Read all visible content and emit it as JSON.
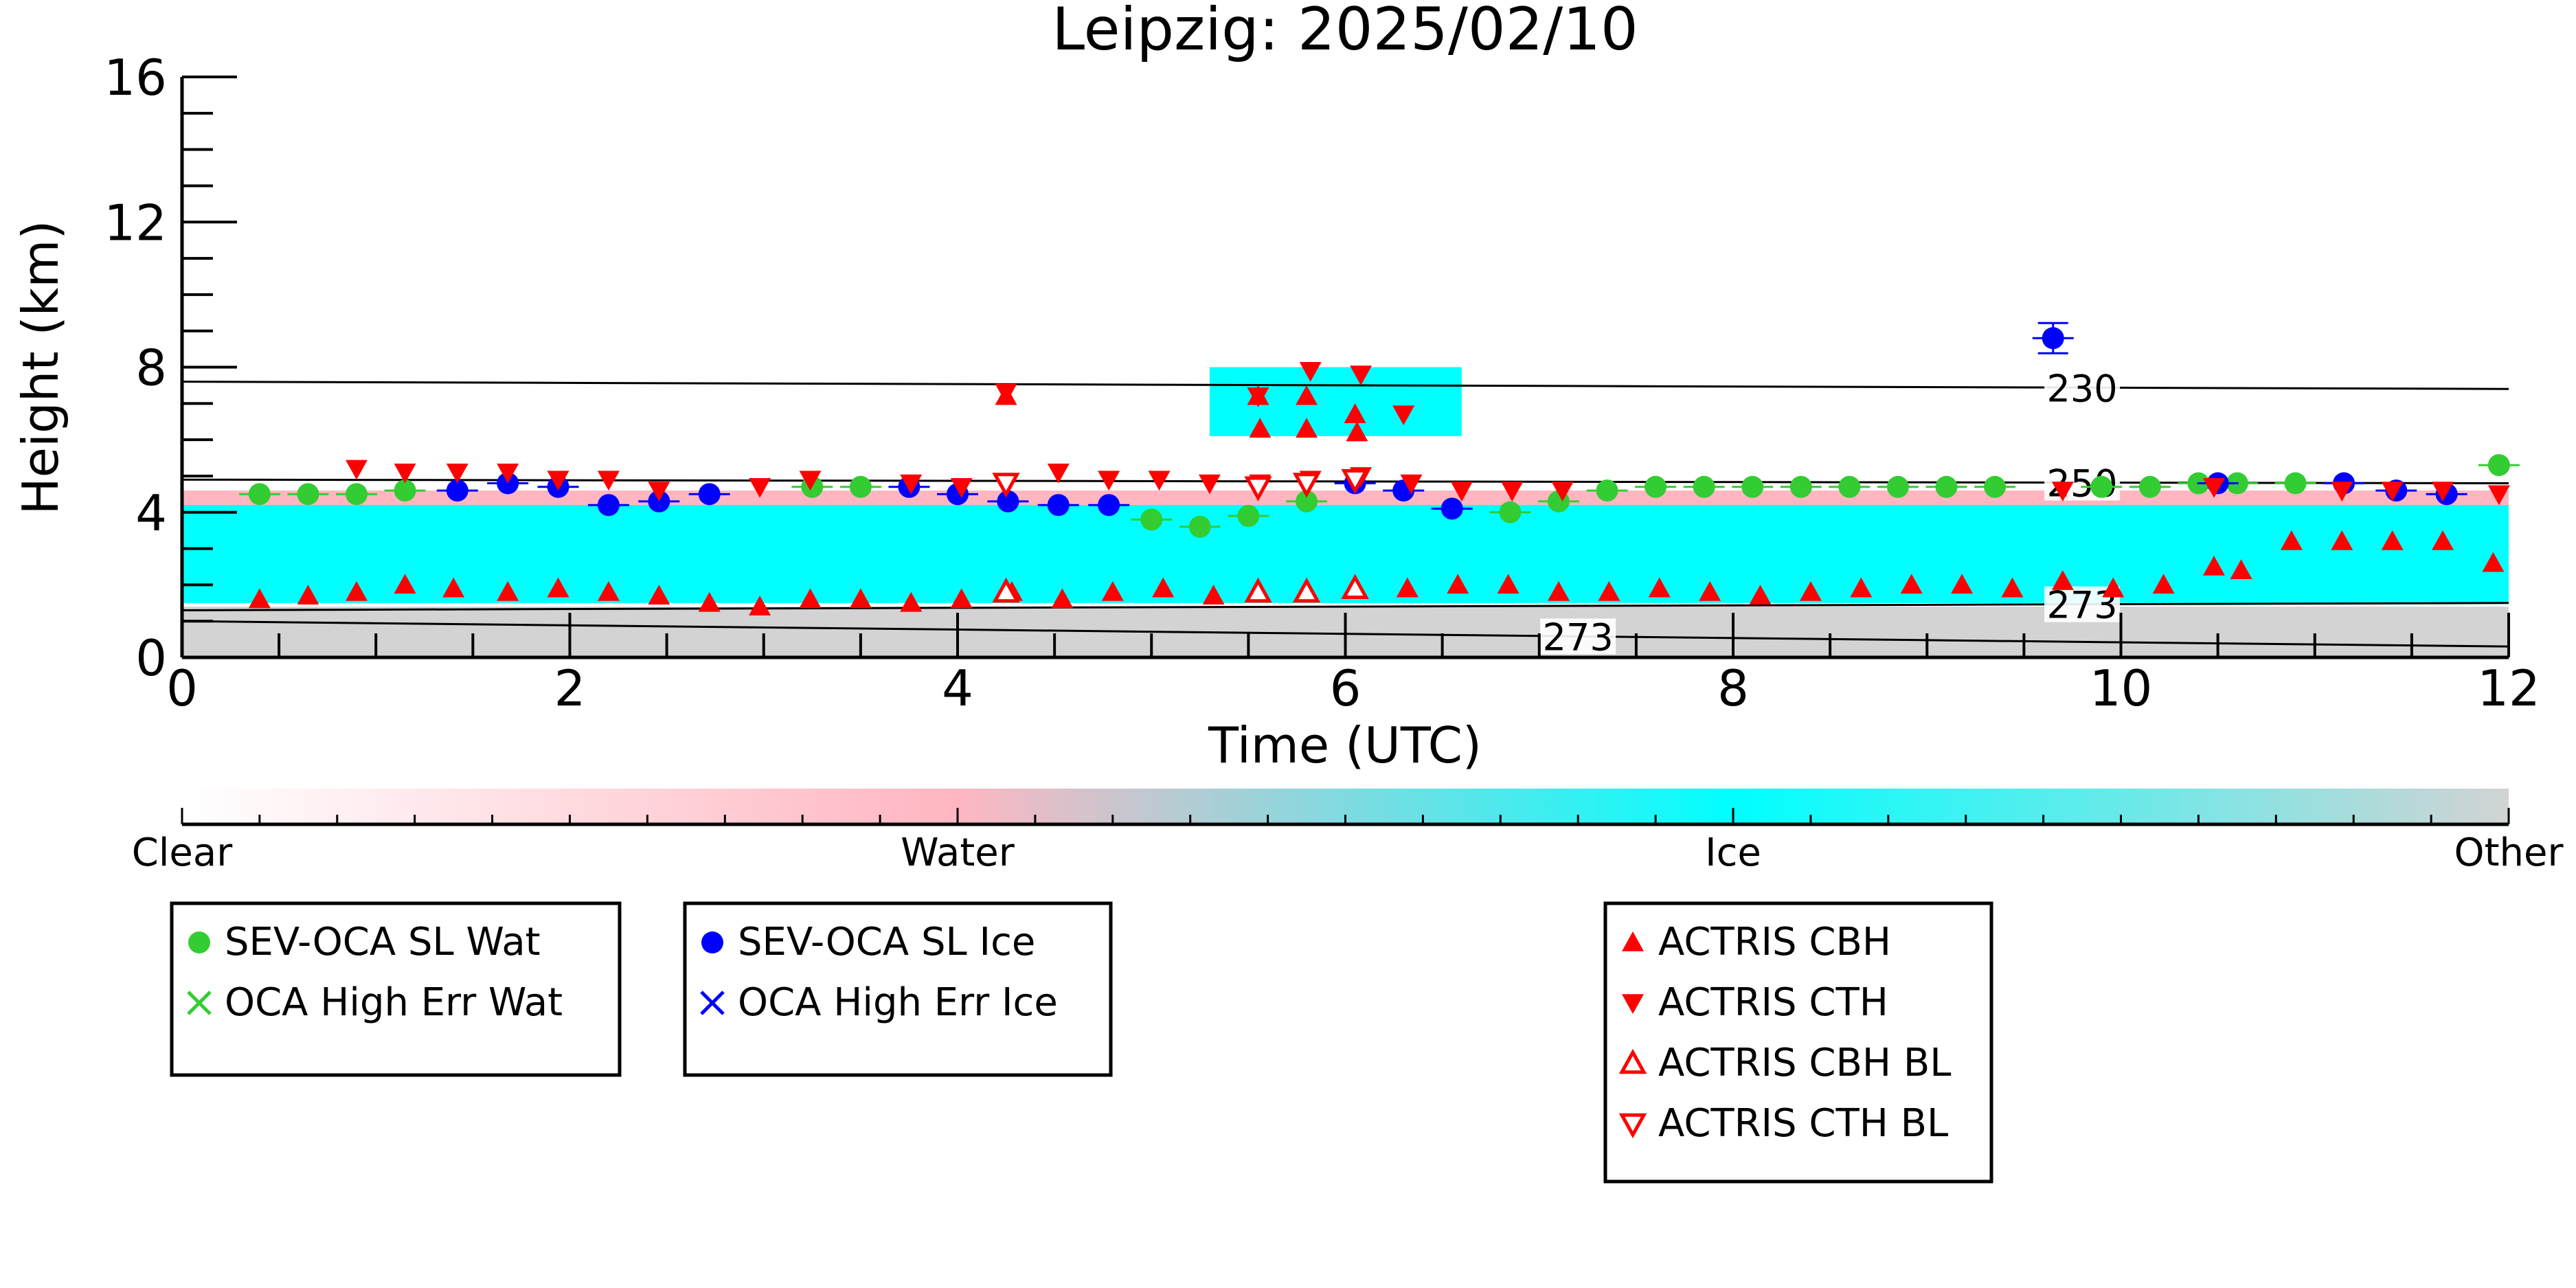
{
  "chart_data": {
    "type": "scatter",
    "title": "Leipzig: 2025/02/10",
    "xlabel": "Time (UTC)",
    "ylabel": "Height (km)",
    "xlim": [
      0,
      12
    ],
    "ylim": [
      0,
      16
    ],
    "x_ticks": [
      0,
      2,
      4,
      6,
      8,
      10,
      12
    ],
    "y_ticks": [
      0,
      4,
      8,
      12,
      16
    ],
    "background_layers": [
      {
        "name": "Ice",
        "color": "#00ffff",
        "base_km": 1.5,
        "top_km": 4.5,
        "x_range": [
          0,
          12
        ]
      },
      {
        "name": "Ice",
        "color": "#00ffff",
        "base_km": 6.1,
        "top_km": 8.0,
        "x_range": [
          5.3,
          6.6
        ]
      },
      {
        "name": "Water",
        "color": "#ffb6c1",
        "base_km": 4.2,
        "top_km": 4.6,
        "x_range": [
          0,
          12
        ]
      },
      {
        "name": "Other",
        "color": "#d3d3d3",
        "base_km": 0.0,
        "top_km": 1.4,
        "x_range": [
          0,
          12
        ]
      }
    ],
    "isotherms": [
      {
        "label": "230",
        "y_left": 7.6,
        "y_right": 7.4,
        "label_x": 9.8
      },
      {
        "label": "250",
        "y_left": 4.9,
        "y_right": 4.8,
        "label_x": 9.8
      },
      {
        "label": "273",
        "y_left": 1.3,
        "y_right": 1.5,
        "label_x": 9.8
      },
      {
        "label": "273",
        "y_left": 1.0,
        "y_right": 0.3,
        "label_x": 7.2
      }
    ],
    "series": [
      {
        "name": "SEV-OCA SL Wat",
        "marker": "circle",
        "color": "#33cc33",
        "x": [
          0.4,
          0.65,
          0.9,
          1.15,
          3.25,
          3.5,
          5.0,
          5.25,
          5.5,
          5.8,
          6.85,
          7.1,
          7.35,
          7.6,
          7.85,
          8.1,
          8.35,
          8.6,
          8.85,
          9.1,
          9.35,
          9.9,
          10.15,
          10.4,
          10.6,
          10.9,
          11.95
        ],
        "y": [
          4.5,
          4.5,
          4.5,
          4.6,
          4.7,
          4.7,
          3.8,
          3.6,
          3.9,
          4.3,
          4.0,
          4.3,
          4.6,
          4.7,
          4.7,
          4.7,
          4.7,
          4.7,
          4.7,
          4.7,
          4.7,
          4.7,
          4.7,
          4.8,
          4.8,
          4.8,
          5.3
        ]
      },
      {
        "name": "SEV-OCA SL Ice",
        "marker": "circle",
        "color": "#0000ff",
        "x": [
          1.42,
          1.68,
          1.94,
          2.2,
          2.46,
          2.72,
          3.75,
          4.0,
          4.26,
          4.52,
          4.78,
          6.05,
          6.3,
          6.55,
          9.65,
          10.5,
          11.15,
          11.42,
          11.68
        ],
        "y": [
          4.6,
          4.8,
          4.7,
          4.2,
          4.3,
          4.5,
          4.7,
          4.5,
          4.3,
          4.2,
          4.2,
          4.8,
          4.6,
          4.1,
          8.8,
          4.8,
          4.8,
          4.6,
          4.5
        ]
      },
      {
        "name": "OCA High Err Wat",
        "marker": "x",
        "color": "#33cc33",
        "x": [],
        "y": []
      },
      {
        "name": "OCA High Err Ice",
        "marker": "x",
        "color": "#0000ff",
        "x": [],
        "y": []
      },
      {
        "name": "ACTRIS CBH",
        "marker": "triangle-up",
        "color": "#ff0000",
        "x": [
          0.4,
          0.65,
          0.9,
          1.15,
          1.4,
          1.68,
          1.94,
          2.2,
          2.46,
          2.72,
          2.98,
          3.24,
          3.5,
          3.76,
          4.02,
          4.28,
          4.54,
          4.8,
          5.06,
          5.32,
          5.56,
          5.8,
          6.06,
          6.32,
          6.58,
          6.84,
          7.1,
          7.36,
          7.62,
          7.88,
          8.14,
          8.4,
          8.66,
          8.92,
          9.18,
          9.44,
          9.7,
          9.96,
          10.22,
          10.48,
          10.62,
          10.88,
          11.14,
          11.4,
          11.66,
          11.92,
          4.25,
          5.55,
          5.8,
          6.05
        ],
        "y": [
          1.6,
          1.7,
          1.8,
          2.0,
          1.9,
          1.8,
          1.9,
          1.8,
          1.7,
          1.5,
          1.4,
          1.6,
          1.6,
          1.5,
          1.6,
          1.8,
          1.6,
          1.8,
          1.9,
          1.7,
          6.3,
          6.3,
          6.2,
          1.9,
          2.0,
          2.0,
          1.8,
          1.8,
          1.9,
          1.8,
          1.7,
          1.8,
          1.9,
          2.0,
          2.0,
          1.9,
          2.1,
          1.9,
          2.0,
          2.5,
          2.4,
          3.2,
          3.2,
          3.2,
          3.2,
          2.6,
          7.2,
          7.2,
          7.2,
          6.7
        ],
        "note_values_unused": false
      },
      {
        "name": "ACTRIS CTH",
        "marker": "triangle-down",
        "color": "#ff0000",
        "x": [
          0.9,
          1.15,
          1.42,
          1.68,
          1.94,
          2.2,
          2.46,
          2.98,
          3.24,
          3.76,
          4.02,
          4.52,
          4.78,
          5.04,
          5.3,
          5.56,
          5.82,
          6.08,
          6.34,
          6.6,
          6.86,
          7.12,
          9.7,
          10.48,
          11.14,
          11.4,
          11.66,
          11.95,
          4.25,
          5.55,
          5.82,
          6.08,
          6.3
        ],
        "y": [
          5.2,
          5.1,
          5.1,
          5.1,
          4.9,
          4.9,
          4.6,
          4.7,
          4.9,
          4.8,
          4.7,
          5.1,
          4.9,
          4.9,
          4.8,
          4.8,
          4.9,
          5.0,
          4.8,
          4.6,
          4.6,
          4.6,
          4.6,
          4.7,
          4.6,
          4.6,
          4.6,
          4.5,
          7.3,
          7.2,
          7.9,
          7.8,
          6.7
        ]
      },
      {
        "name": "ACTRIS CBH BL",
        "marker": "triangle-up-open",
        "color": "#ff0000",
        "x": [
          4.25,
          5.55,
          5.8,
          6.05
        ],
        "y": [
          1.8,
          1.8,
          1.8,
          1.9
        ]
      },
      {
        "name": "ACTRIS CTH BL",
        "marker": "triangle-down-open",
        "color": "#ff0000",
        "x": [
          4.25,
          5.55,
          5.8,
          6.05
        ],
        "y": [
          4.8,
          4.7,
          4.8,
          4.9
        ]
      }
    ],
    "colorbar": {
      "labels": [
        "Clear",
        "Water",
        "Ice",
        "Other"
      ],
      "colors": [
        "#ffffff",
        "#ffb6c1",
        "#00ffff",
        "#d3d3d3"
      ]
    },
    "legends": [
      {
        "entries": [
          "SEV-OCA SL Wat",
          "OCA High Err Wat"
        ]
      },
      {
        "entries": [
          "SEV-OCA SL Ice",
          "OCA High Err Ice"
        ]
      },
      {
        "entries": [
          "ACTRIS CBH",
          "ACTRIS CTH",
          "ACTRIS CBH BL",
          "ACTRIS CTH BL"
        ]
      }
    ]
  }
}
